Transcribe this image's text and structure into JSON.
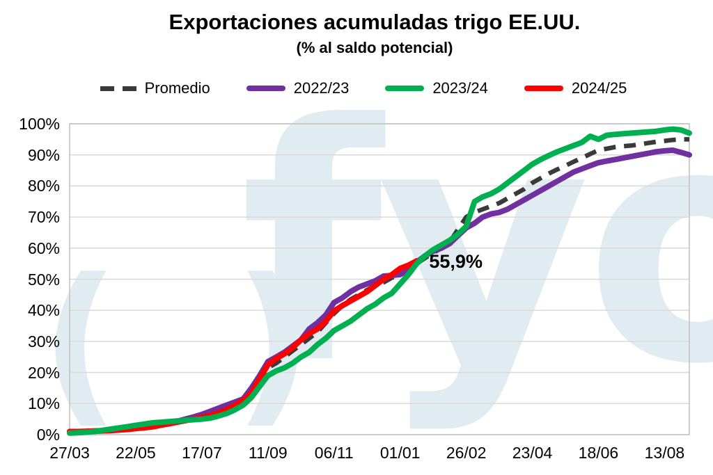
{
  "title": "Exportaciones acumuladas trigo EE.UU.",
  "subtitle": "(% al saldo potencial)",
  "watermark": {
    "mark": "( )",
    "text": "fyo",
    "color": "#e1ecf2"
  },
  "legend": [
    {
      "label": "Promedio",
      "color": "#3a3a3a",
      "dashed": true
    },
    {
      "label": "2022/23",
      "color": "#7030a0",
      "dashed": false
    },
    {
      "label": "2023/24",
      "color": "#00b050",
      "dashed": false
    },
    {
      "label": "2024/25",
      "color": "#ff0000",
      "dashed": false
    }
  ],
  "chart_data": {
    "type": "line",
    "title": "Exportaciones acumuladas trigo EE.UU.",
    "subtitle": "(% al saldo potencial)",
    "xlabel": "",
    "ylabel": "",
    "ylim": [
      0,
      100
    ],
    "y_ticks": [
      "0%",
      "10%",
      "20%",
      "30%",
      "40%",
      "50%",
      "60%",
      "70%",
      "80%",
      "90%",
      "100%"
    ],
    "x_range_weeks": [
      0,
      75
    ],
    "x_tick_weeks": [
      0,
      8,
      16,
      24,
      32,
      40,
      48,
      56,
      64,
      72
    ],
    "x_tick_labels": [
      "27/03",
      "22/05",
      "17/07",
      "11/09",
      "06/11",
      "01/01",
      "26/02",
      "23/04",
      "18/06",
      "13/08"
    ],
    "grid": "horizontal",
    "legend_position": "top",
    "annotation": {
      "text": "55,9%",
      "week": 42,
      "value": 55.9,
      "series": "2024/25"
    },
    "series": [
      {
        "name": "Promedio",
        "color": "#3a3a3a",
        "dashed": true,
        "width": 6.5,
        "start_week": 0,
        "week_step": 1,
        "values": [
          1,
          1,
          1.1,
          1.2,
          1.3,
          1.5,
          1.7,
          1.9,
          2.2,
          2.6,
          3,
          3.3,
          3.7,
          4.4,
          5.2,
          5.8,
          6.5,
          7.2,
          8,
          9,
          10,
          11.5,
          13,
          17,
          21.5,
          23,
          25,
          27,
          29,
          31,
          33,
          36,
          39,
          41.5,
          43.5,
          45,
          46.5,
          48,
          49,
          50.5,
          51.5,
          53,
          55,
          56.8,
          58.5,
          60,
          62,
          66,
          70,
          71.5,
          72.5,
          73.5,
          74.5,
          76,
          77.5,
          79,
          81,
          82.5,
          84,
          85.3,
          86.5,
          87.8,
          89,
          90.3,
          91.5,
          92,
          92.5,
          92.8,
          93,
          93.4,
          93.8,
          94.2,
          94.5,
          94.8,
          95,
          95
        ]
      },
      {
        "name": "2022/23",
        "color": "#7030a0",
        "dashed": false,
        "width": 8,
        "start_week": 0,
        "week_step": 1,
        "values": [
          1,
          1,
          1,
          1.1,
          1.2,
          1.3,
          1.5,
          1.7,
          2,
          2.4,
          2.8,
          3.2,
          3.6,
          4.3,
          5,
          5.7,
          6.5,
          7.5,
          8.5,
          9.5,
          10.5,
          11.5,
          15,
          19,
          23.5,
          25,
          26.5,
          28.5,
          30.5,
          34,
          36,
          38.5,
          42.5,
          44,
          46,
          47.5,
          48.5,
          49.5,
          51,
          51.2,
          51.5,
          53,
          55.5,
          57.5,
          59,
          60,
          61.5,
          64,
          66.5,
          68,
          70,
          71,
          71.5,
          72.5,
          74,
          75.5,
          77,
          78.5,
          80,
          81.5,
          83,
          84.5,
          85.5,
          86.5,
          87.5,
          88,
          88.5,
          89,
          89.5,
          90,
          90.5,
          91,
          91.3,
          91.5,
          90.8,
          90
        ]
      },
      {
        "name": "2024/25",
        "color": "#ff0000",
        "dashed": false,
        "width": 8,
        "start_week": 0,
        "week_step": 1,
        "values": [
          1,
          1,
          1.1,
          1.2,
          1.3,
          1.4,
          1.5,
          1.7,
          2,
          2.2,
          2.5,
          3,
          3.5,
          4,
          4.5,
          5,
          5.6,
          6.2,
          7,
          8,
          9.5,
          11,
          13.5,
          18,
          22.5,
          24.5,
          26,
          28,
          30.5,
          32.5,
          34,
          36.5,
          39.8,
          41.5,
          43,
          44.5,
          46,
          48,
          50,
          51.5,
          53.5,
          54.5,
          55.9
        ]
      },
      {
        "name": "2023/24",
        "color": "#00b050",
        "dashed": false,
        "width": 8,
        "start_week": 0,
        "week_step": 1,
        "values": [
          0.5,
          0.6,
          0.8,
          1,
          1.4,
          1.8,
          2.2,
          2.6,
          3,
          3.4,
          3.8,
          4,
          4.2,
          4.4,
          4.6,
          4.8,
          5,
          5.3,
          6,
          6.8,
          8,
          9.5,
          12,
          15.5,
          19,
          20.5,
          21.5,
          23,
          25,
          26.5,
          29,
          31,
          33.5,
          35,
          36.5,
          38.5,
          40.5,
          42,
          44,
          45.5,
          48.5,
          51.5,
          55,
          57.5,
          59.5,
          61,
          62.5,
          64.5,
          67,
          75,
          76.5,
          77.5,
          79,
          81,
          83,
          85,
          87,
          88.5,
          89.8,
          91,
          92,
          93,
          94,
          96,
          95,
          96.3,
          96.6,
          96.8,
          97,
          97.2,
          97.4,
          97.6,
          98,
          98.3,
          98,
          97
        ]
      }
    ]
  },
  "colors": {
    "grid": "#d9d9d9",
    "plot_border": "#bfbfbf",
    "background": "#ffffff"
  }
}
